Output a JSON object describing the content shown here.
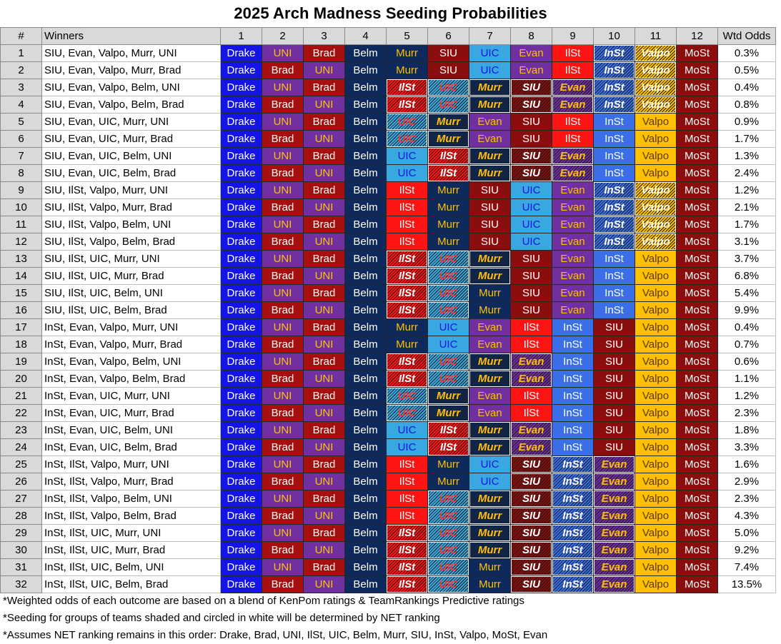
{
  "title": "2025 Arch Madness Seeding Probabilities",
  "header": {
    "index": "#",
    "winners": "Winners",
    "seeds": [
      "1",
      "2",
      "3",
      "4",
      "5",
      "6",
      "7",
      "8",
      "9",
      "10",
      "11",
      "12"
    ],
    "odds": "Wtd Odds"
  },
  "team_colors": {
    "Drake": {
      "bg": "#1414e6",
      "fg": "#ffffff"
    },
    "UNI": {
      "bg": "#7030a0",
      "fg": "#ffc000"
    },
    "Brad": {
      "bg": "#a50f0f",
      "fg": "#ffffff"
    },
    "Belm": {
      "bg": "#0e2a5c",
      "fg": "#ffffff"
    },
    "Murr": {
      "bg": "#0e2a5c",
      "fg": "#ffc000"
    },
    "SIU": {
      "bg": "#8b0e0e",
      "fg": "#ffffff"
    },
    "UIC": {
      "bg": "#39a7e0",
      "fg": "#1414e6"
    },
    "Evan": {
      "bg": "#7030a0",
      "fg": "#ffc000"
    },
    "IlSt": {
      "bg": "#ff1414",
      "fg": "#ffffff"
    },
    "InSt": {
      "bg": "#3a6fe8",
      "fg": "#ffffff"
    },
    "Valpo": {
      "bg": "#ffc000",
      "fg": "#5a3a00"
    },
    "MoSt": {
      "bg": "#8b0e0e",
      "fg": "#ffffff"
    }
  },
  "rows": [
    {
      "n": "1",
      "winners": "SIU, Evan, Valpo, Murr, UNI",
      "seeds": [
        "Drake",
        "UNI",
        "Brad",
        "Belm",
        "Murr",
        "SIU",
        "UIC",
        "Evan",
        "IlSt",
        "InSt",
        "Valpo",
        "MoSt"
      ],
      "circled": [
        9,
        10
      ],
      "odds": "0.3%"
    },
    {
      "n": "2",
      "winners": "SIU, Evan, Valpo, Murr, Brad",
      "seeds": [
        "Drake",
        "Brad",
        "UNI",
        "Belm",
        "Murr",
        "SIU",
        "UIC",
        "Evan",
        "IlSt",
        "InSt",
        "Valpo",
        "MoSt"
      ],
      "circled": [
        9,
        10
      ],
      "odds": "0.5%"
    },
    {
      "n": "3",
      "winners": "SIU, Evan, Valpo, Belm, UNI",
      "seeds": [
        "Drake",
        "UNI",
        "Brad",
        "Belm",
        "IlSt",
        "UIC",
        "Murr",
        "SIU",
        "Evan",
        "InSt",
        "Valpo",
        "MoSt"
      ],
      "circled": [
        4,
        5,
        6,
        7,
        8,
        9,
        10
      ],
      "odds": "0.4%"
    },
    {
      "n": "4",
      "winners": "SIU, Evan, Valpo, Belm, Brad",
      "seeds": [
        "Drake",
        "Brad",
        "UNI",
        "Belm",
        "IlSt",
        "UIC",
        "Murr",
        "SIU",
        "Evan",
        "InSt",
        "Valpo",
        "MoSt"
      ],
      "circled": [
        4,
        5,
        6,
        7,
        8,
        9,
        10
      ],
      "odds": "0.8%"
    },
    {
      "n": "5",
      "winners": "SIU, Evan, UIC, Murr, UNI",
      "seeds": [
        "Drake",
        "UNI",
        "Brad",
        "Belm",
        "UIC",
        "Murr",
        "Evan",
        "SIU",
        "IlSt",
        "InSt",
        "Valpo",
        "MoSt"
      ],
      "circled": [
        4,
        5
      ],
      "odds": "0.9%"
    },
    {
      "n": "6",
      "winners": "SIU, Evan, UIC, Murr, Brad",
      "seeds": [
        "Drake",
        "Brad",
        "UNI",
        "Belm",
        "UIC",
        "Murr",
        "Evan",
        "SIU",
        "IlSt",
        "InSt",
        "Valpo",
        "MoSt"
      ],
      "circled": [
        4,
        5
      ],
      "odds": "1.7%"
    },
    {
      "n": "7",
      "winners": "SIU, Evan, UIC, Belm, UNI",
      "seeds": [
        "Drake",
        "UNI",
        "Brad",
        "Belm",
        "UIC",
        "IlSt",
        "Murr",
        "SIU",
        "Evan",
        "InSt",
        "Valpo",
        "MoSt"
      ],
      "circled": [
        5,
        6,
        7,
        8
      ],
      "odds": "1.3%"
    },
    {
      "n": "8",
      "winners": "SIU, Evan, UIC, Belm, Brad",
      "seeds": [
        "Drake",
        "Brad",
        "UNI",
        "Belm",
        "UIC",
        "IlSt",
        "Murr",
        "SIU",
        "Evan",
        "InSt",
        "Valpo",
        "MoSt"
      ],
      "circled": [
        5,
        6,
        7,
        8
      ],
      "odds": "2.4%"
    },
    {
      "n": "9",
      "winners": "SIU, IlSt, Valpo, Murr, UNI",
      "seeds": [
        "Drake",
        "UNI",
        "Brad",
        "Belm",
        "IlSt",
        "Murr",
        "SIU",
        "UIC",
        "Evan",
        "InSt",
        "Valpo",
        "MoSt"
      ],
      "circled": [
        9,
        10
      ],
      "odds": "1.2%"
    },
    {
      "n": "10",
      "winners": "SIU, IlSt, Valpo, Murr, Brad",
      "seeds": [
        "Drake",
        "Brad",
        "UNI",
        "Belm",
        "IlSt",
        "Murr",
        "SIU",
        "UIC",
        "Evan",
        "InSt",
        "Valpo",
        "MoSt"
      ],
      "circled": [
        9,
        10
      ],
      "odds": "2.1%"
    },
    {
      "n": "11",
      "winners": "SIU, IlSt, Valpo, Belm, UNI",
      "seeds": [
        "Drake",
        "UNI",
        "Brad",
        "Belm",
        "IlSt",
        "Murr",
        "SIU",
        "UIC",
        "Evan",
        "InSt",
        "Valpo",
        "MoSt"
      ],
      "circled": [
        9,
        10
      ],
      "odds": "1.7%"
    },
    {
      "n": "12",
      "winners": "SIU, IlSt, Valpo, Belm, Brad",
      "seeds": [
        "Drake",
        "Brad",
        "UNI",
        "Belm",
        "IlSt",
        "Murr",
        "SIU",
        "UIC",
        "Evan",
        "InSt",
        "Valpo",
        "MoSt"
      ],
      "circled": [
        9,
        10
      ],
      "odds": "3.1%"
    },
    {
      "n": "13",
      "winners": "SIU, IlSt, UIC, Murr, UNI",
      "seeds": [
        "Drake",
        "UNI",
        "Brad",
        "Belm",
        "IlSt",
        "UIC",
        "Murr",
        "SIU",
        "Evan",
        "InSt",
        "Valpo",
        "MoSt"
      ],
      "circled": [
        4,
        5,
        6
      ],
      "odds": "3.7%"
    },
    {
      "n": "14",
      "winners": "SIU, IlSt, UIC, Murr, Brad",
      "seeds": [
        "Drake",
        "Brad",
        "UNI",
        "Belm",
        "IlSt",
        "UIC",
        "Murr",
        "SIU",
        "Evan",
        "InSt",
        "Valpo",
        "MoSt"
      ],
      "circled": [
        4,
        5,
        6
      ],
      "odds": "6.8%"
    },
    {
      "n": "15",
      "winners": "SIU, IlSt, UIC, Belm, UNI",
      "seeds": [
        "Drake",
        "UNI",
        "Brad",
        "Belm",
        "IlSt",
        "UIC",
        "Murr",
        "SIU",
        "Evan",
        "InSt",
        "Valpo",
        "MoSt"
      ],
      "circled": [
        4,
        5
      ],
      "odds": "5.4%"
    },
    {
      "n": "16",
      "winners": "SIU, IlSt, UIC, Belm, Brad",
      "seeds": [
        "Drake",
        "Brad",
        "UNI",
        "Belm",
        "IlSt",
        "UIC",
        "Murr",
        "SIU",
        "Evan",
        "InSt",
        "Valpo",
        "MoSt"
      ],
      "circled": [
        4,
        5
      ],
      "odds": "9.9%"
    },
    {
      "n": "17",
      "winners": "InSt, Evan, Valpo, Murr, UNI",
      "seeds": [
        "Drake",
        "UNI",
        "Brad",
        "Belm",
        "Murr",
        "UIC",
        "Evan",
        "IlSt",
        "InSt",
        "SIU",
        "Valpo",
        "MoSt"
      ],
      "circled": [],
      "odds": "0.4%"
    },
    {
      "n": "18",
      "winners": "InSt, Evan, Valpo, Murr, Brad",
      "seeds": [
        "Drake",
        "Brad",
        "UNI",
        "Belm",
        "Murr",
        "UIC",
        "Evan",
        "IlSt",
        "InSt",
        "SIU",
        "Valpo",
        "MoSt"
      ],
      "circled": [],
      "odds": "0.7%"
    },
    {
      "n": "19",
      "winners": "InSt, Evan, Valpo, Belm, UNI",
      "seeds": [
        "Drake",
        "UNI",
        "Brad",
        "Belm",
        "IlSt",
        "UIC",
        "Murr",
        "Evan",
        "InSt",
        "SIU",
        "Valpo",
        "MoSt"
      ],
      "circled": [
        4,
        5,
        6,
        7
      ],
      "odds": "0.6%"
    },
    {
      "n": "20",
      "winners": "InSt, Evan, Valpo, Belm, Brad",
      "seeds": [
        "Drake",
        "Brad",
        "UNI",
        "Belm",
        "IlSt",
        "UIC",
        "Murr",
        "Evan",
        "InSt",
        "SIU",
        "Valpo",
        "MoSt"
      ],
      "circled": [
        4,
        5,
        6,
        7
      ],
      "odds": "1.1%"
    },
    {
      "n": "21",
      "winners": "InSt, Evan, UIC, Murr, UNI",
      "seeds": [
        "Drake",
        "UNI",
        "Brad",
        "Belm",
        "UIC",
        "Murr",
        "Evan",
        "IlSt",
        "InSt",
        "SIU",
        "Valpo",
        "MoSt"
      ],
      "circled": [
        4,
        5
      ],
      "odds": "1.2%"
    },
    {
      "n": "22",
      "winners": "InSt, Evan, UIC, Murr, Brad",
      "seeds": [
        "Drake",
        "Brad",
        "UNI",
        "Belm",
        "UIC",
        "Murr",
        "Evan",
        "IlSt",
        "InSt",
        "SIU",
        "Valpo",
        "MoSt"
      ],
      "circled": [
        4,
        5
      ],
      "odds": "2.3%"
    },
    {
      "n": "23",
      "winners": "InSt, Evan, UIC, Belm, UNI",
      "seeds": [
        "Drake",
        "UNI",
        "Brad",
        "Belm",
        "UIC",
        "IlSt",
        "Murr",
        "Evan",
        "InSt",
        "SIU",
        "Valpo",
        "MoSt"
      ],
      "circled": [
        5,
        6,
        7
      ],
      "odds": "1.8%"
    },
    {
      "n": "24",
      "winners": "InSt, Evan, UIC, Belm, Brad",
      "seeds": [
        "Drake",
        "Brad",
        "UNI",
        "Belm",
        "UIC",
        "IlSt",
        "Murr",
        "Evan",
        "InSt",
        "SIU",
        "Valpo",
        "MoSt"
      ],
      "circled": [
        5,
        6,
        7
      ],
      "odds": "3.3%"
    },
    {
      "n": "25",
      "winners": "InSt, IlSt, Valpo, Murr, UNI",
      "seeds": [
        "Drake",
        "UNI",
        "Brad",
        "Belm",
        "IlSt",
        "Murr",
        "UIC",
        "SIU",
        "InSt",
        "Evan",
        "Valpo",
        "MoSt"
      ],
      "circled": [
        7,
        8,
        9
      ],
      "odds": "1.6%"
    },
    {
      "n": "26",
      "winners": "InSt, IlSt, Valpo, Murr, Brad",
      "seeds": [
        "Drake",
        "Brad",
        "UNI",
        "Belm",
        "IlSt",
        "Murr",
        "UIC",
        "SIU",
        "InSt",
        "Evan",
        "Valpo",
        "MoSt"
      ],
      "circled": [
        7,
        8,
        9
      ],
      "odds": "2.9%"
    },
    {
      "n": "27",
      "winners": "InSt, IlSt, Valpo, Belm, UNI",
      "seeds": [
        "Drake",
        "UNI",
        "Brad",
        "Belm",
        "IlSt",
        "UIC",
        "Murr",
        "SIU",
        "InSt",
        "Evan",
        "Valpo",
        "MoSt"
      ],
      "circled": [
        5,
        6,
        7,
        8,
        9
      ],
      "odds": "2.3%"
    },
    {
      "n": "28",
      "winners": "InSt, IlSt, Valpo, Belm, Brad",
      "seeds": [
        "Drake",
        "Brad",
        "UNI",
        "Belm",
        "IlSt",
        "UIC",
        "Murr",
        "SIU",
        "InSt",
        "Evan",
        "Valpo",
        "MoSt"
      ],
      "circled": [
        5,
        6,
        7,
        8,
        9
      ],
      "odds": "4.3%"
    },
    {
      "n": "29",
      "winners": "InSt, IlSt, UIC, Murr, UNI",
      "seeds": [
        "Drake",
        "UNI",
        "Brad",
        "Belm",
        "IlSt",
        "UIC",
        "Murr",
        "SIU",
        "InSt",
        "Evan",
        "Valpo",
        "MoSt"
      ],
      "circled": [
        4,
        5,
        6,
        7,
        8,
        9
      ],
      "odds": "5.0%"
    },
    {
      "n": "30",
      "winners": "InSt, IlSt, UIC, Murr, Brad",
      "seeds": [
        "Drake",
        "Brad",
        "UNI",
        "Belm",
        "IlSt",
        "UIC",
        "Murr",
        "SIU",
        "InSt",
        "Evan",
        "Valpo",
        "MoSt"
      ],
      "circled": [
        4,
        5,
        6,
        7,
        8,
        9
      ],
      "odds": "9.2%"
    },
    {
      "n": "31",
      "winners": "InSt, IlSt, UIC, Belm, UNI",
      "seeds": [
        "Drake",
        "UNI",
        "Brad",
        "Belm",
        "IlSt",
        "UIC",
        "Murr",
        "SIU",
        "InSt",
        "Evan",
        "Valpo",
        "MoSt"
      ],
      "circled": [
        4,
        5,
        7,
        8,
        9
      ],
      "odds": "7.4%"
    },
    {
      "n": "32",
      "winners": "InSt, IlSt, UIC, Belm, Brad",
      "seeds": [
        "Drake",
        "Brad",
        "UNI",
        "Belm",
        "IlSt",
        "UIC",
        "Murr",
        "SIU",
        "InSt",
        "Evan",
        "Valpo",
        "MoSt"
      ],
      "circled": [
        4,
        5,
        7,
        8,
        9
      ],
      "odds": "13.5%"
    }
  ],
  "footnotes": [
    "*Weighted odds of each outcome are based on a blend of KenPom ratings & TeamRankings Predictive ratings",
    "*Seeding for groups of teams shaded and circled in white will be determined by NET ranking",
    "*Assumes NET ranking remains in this order: Drake, Brad, UNI, IlSt, UIC, Belm, Murr, SIU, InSt, Valpo, MoSt, Evan"
  ]
}
